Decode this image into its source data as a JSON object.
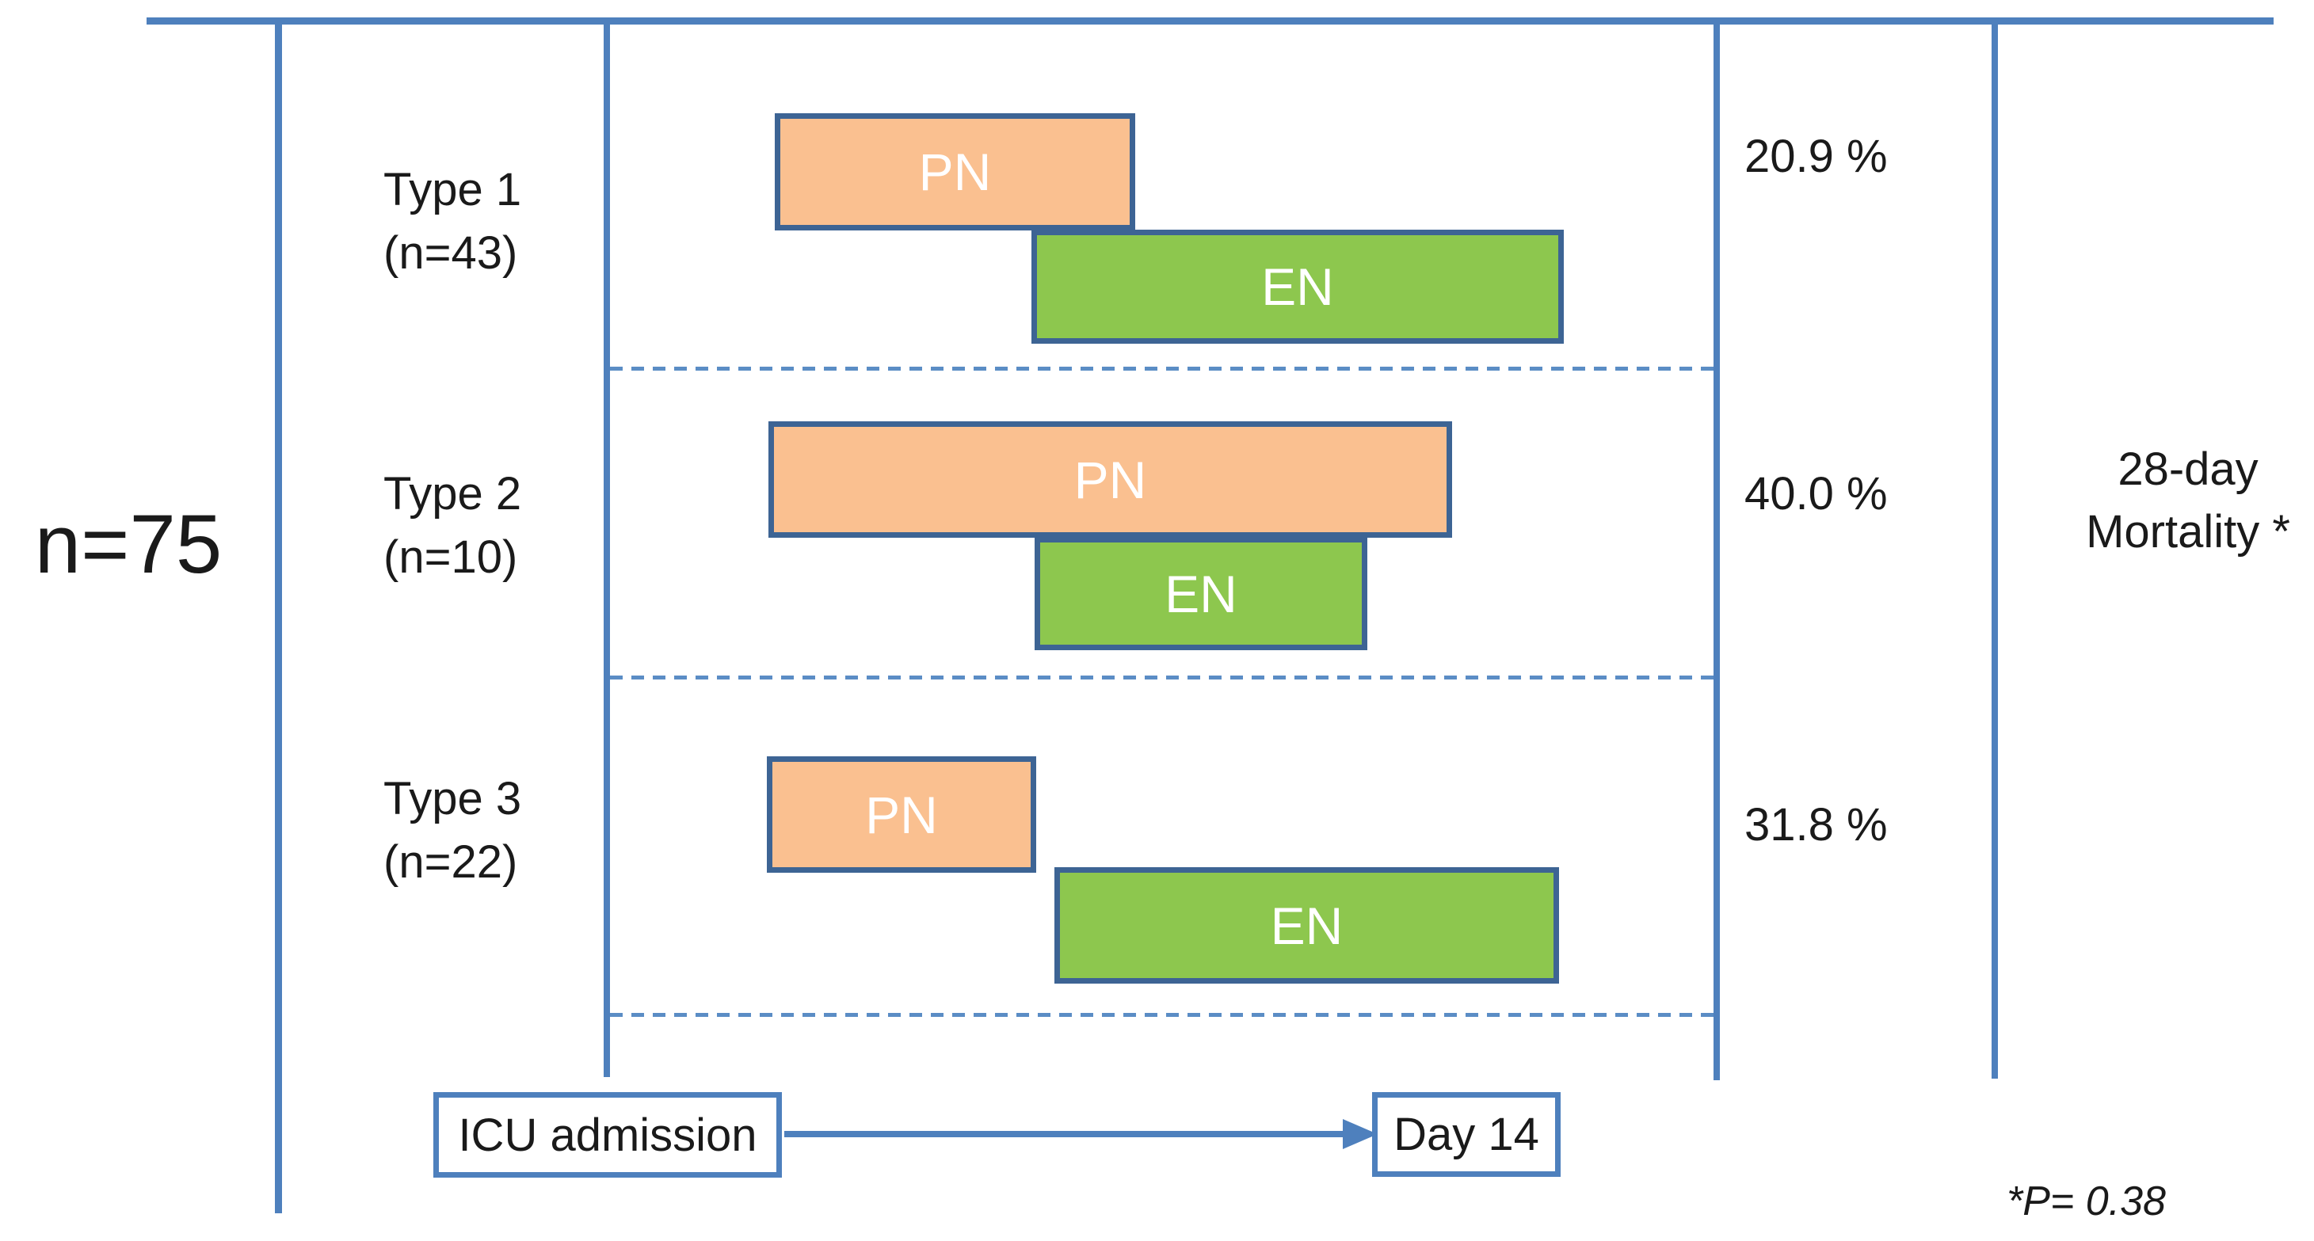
{
  "figure": {
    "cohort_label": "n=75",
    "rows": [
      {
        "type_label": "Type 1",
        "n_label": "(n=43)",
        "mortality_pct": "20.9 %",
        "bars": [
          {
            "label": "PN",
            "kind": "parenteral-nutrition"
          },
          {
            "label": "EN",
            "kind": "enteral-nutrition"
          }
        ]
      },
      {
        "type_label": "Type 2",
        "n_label": "(n=10)",
        "mortality_pct": "40.0 %",
        "bars": [
          {
            "label": "PN",
            "kind": "parenteral-nutrition"
          },
          {
            "label": "EN",
            "kind": "enteral-nutrition"
          }
        ]
      },
      {
        "type_label": "Type 3",
        "n_label": "(n=22)",
        "mortality_pct": "31.8 %",
        "bars": [
          {
            "label": "PN",
            "kind": "parenteral-nutrition"
          },
          {
            "label": "EN",
            "kind": "enteral-nutrition"
          }
        ]
      }
    ],
    "mortality_header": {
      "line1": "28-day",
      "line2": "Mortality *"
    },
    "timeline": {
      "start_label": "ICU admission",
      "end_label": "Day 14"
    },
    "footnote": "*P= 0.38"
  },
  "colors": {
    "line_blue": "#4E80BD",
    "bar_border": "#3D6494",
    "pn_fill": "#FAC090",
    "en_fill": "#8DC74E",
    "dash_blue": "#5B8DC5",
    "text_black": "#1A1A1A"
  }
}
